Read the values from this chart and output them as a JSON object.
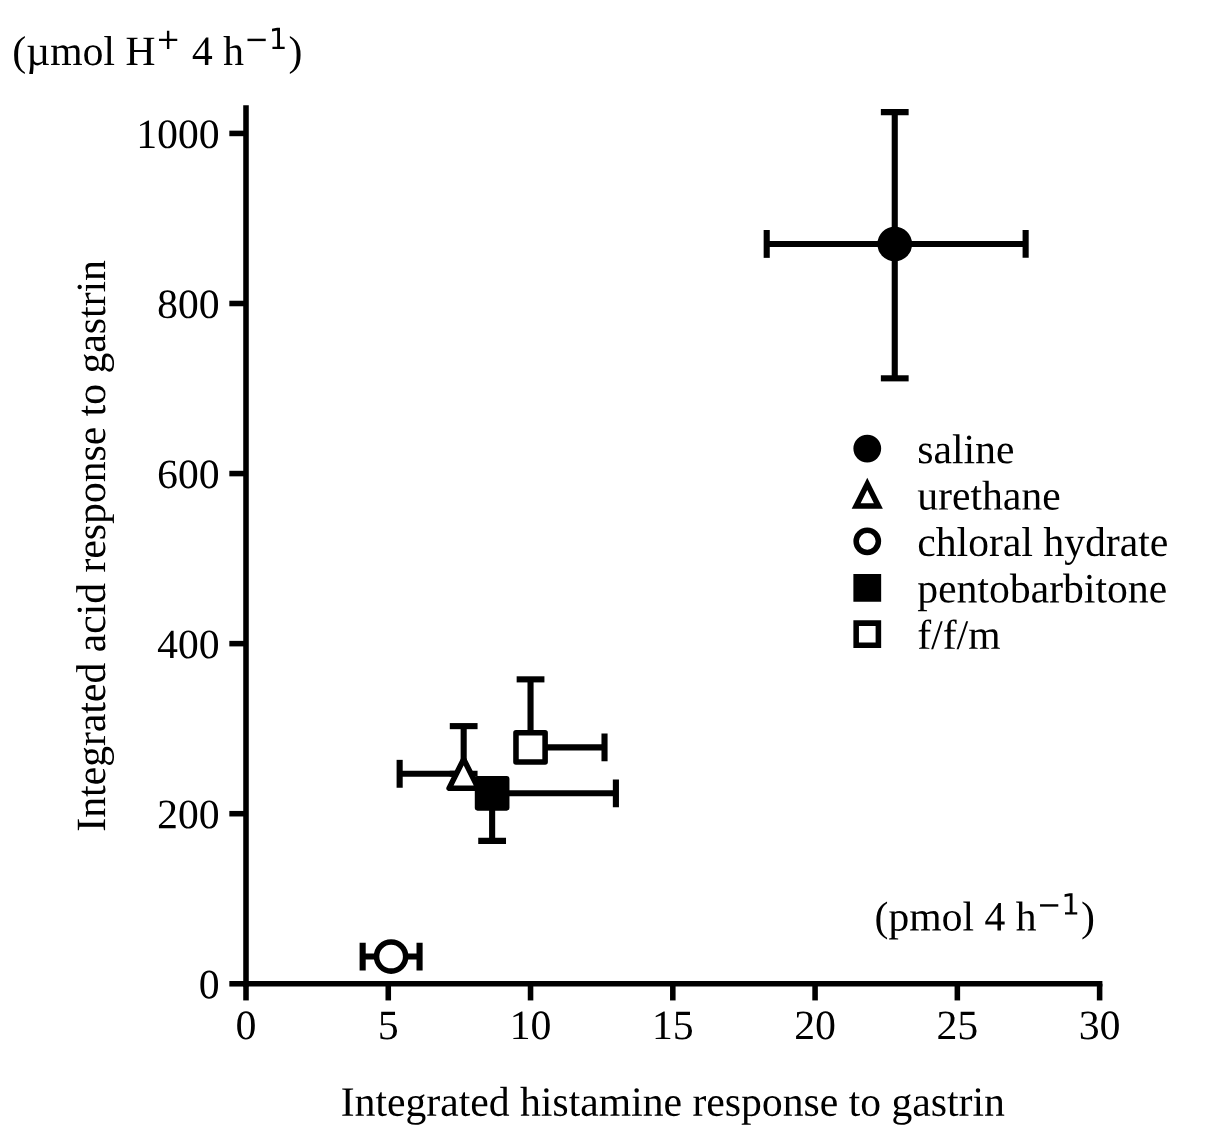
{
  "chart_data": {
    "type": "scatter",
    "xlabel": "Integrated histamine response to gastrin",
    "ylabel": "Integrated acid response to gastrin",
    "annotations": [
      "(µmol H$^{+}$ 4 h$^{−1}$)",
      "(pmol 4 h$^{−1}$)"
    ],
    "xlim": [
      0,
      30
    ],
    "xticks": [
      0,
      5,
      10,
      15,
      20,
      25,
      30
    ],
    "ylim": [
      0,
      1030
    ],
    "yticks": [
      0,
      200,
      400,
      600,
      800,
      1000
    ],
    "grid": false,
    "legend": "right",
    "series": [
      {
        "name": "saline",
        "color": "#000000",
        "marker": "circle",
        "x": [
          22.8
        ],
        "values": [
          870
        ],
        "errors": [
          [
            712,
            1025
          ]
        ],
        "xerrors": [
          [
            18.3,
            27.4
          ]
        ]
      },
      {
        "name": "urethane",
        "color": "#ffffff",
        "marker": "triangle",
        "x": [
          7.65
        ],
        "values": [
          247
        ],
        "errors": [
          [
            247,
            303
          ]
        ],
        "xerrors": [
          [
            5.4,
            7.65
          ]
        ]
      },
      {
        "name": "chloral hydrate",
        "color": "#ffffff",
        "marker": "circle",
        "x": [
          5.1
        ],
        "values": [
          32
        ],
        "errors": [
          null
        ],
        "xerrors": [
          1.0
        ]
      },
      {
        "name": "pentobarbitone",
        "color": "#000000",
        "marker": "square",
        "x": [
          8.65
        ],
        "values": [
          224
        ],
        "errors": [
          [
            168,
            224
          ]
        ],
        "xerrors": [
          [
            8.65,
            13.0
          ]
        ]
      },
      {
        "name": "f/f/m",
        "color": "#ffffff",
        "marker": "square",
        "x": [
          10.0
        ],
        "values": [
          278
        ],
        "errors": [
          [
            278,
            358
          ]
        ],
        "xerrors": [
          [
            10.0,
            12.6
          ]
        ]
      }
    ]
  }
}
